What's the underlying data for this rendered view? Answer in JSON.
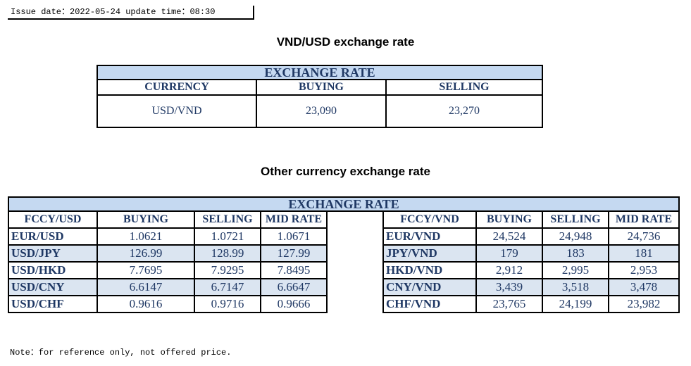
{
  "issue_line": "Issue date：2022-05-24 update time：08:30",
  "title_vnd_usd": "VND/USD exchange rate",
  "table1": {
    "header": "EXCHANGE RATE",
    "columns": [
      "CURRENCY",
      "BUYING",
      "SELLING"
    ],
    "row": [
      "USD/VND",
      "23,090",
      "23,270"
    ]
  },
  "title_other": "Other currency exchange rate",
  "table2": {
    "header": "EXCHANGE RATE",
    "left_columns": [
      "FCCY/USD",
      "BUYING",
      "SELLING",
      "MID RATE"
    ],
    "right_columns": [
      "FCCY/VND",
      "BUYING",
      "SELLING",
      "MID RATE"
    ],
    "rows": [
      {
        "left": [
          "EUR/USD",
          "1.0621",
          "1.0721",
          "1.0671"
        ],
        "right": [
          "EUR/VND",
          "24,524",
          "24,948",
          "24,736"
        ]
      },
      {
        "left": [
          "USD/JPY",
          "126.99",
          "128.99",
          "127.99"
        ],
        "right": [
          "JPY/VND",
          "179",
          "183",
          "181"
        ]
      },
      {
        "left": [
          "USD/HKD",
          "7.7695",
          "7.9295",
          "7.8495"
        ],
        "right": [
          "HKD/VND",
          "2,912",
          "2,995",
          "2,953"
        ]
      },
      {
        "left": [
          "USD/CNY",
          "6.6147",
          "6.7147",
          "6.6647"
        ],
        "right": [
          "CNY/VND",
          "3,439",
          "3,518",
          "3,478"
        ]
      },
      {
        "left": [
          "USD/CHF",
          "0.9616",
          "0.9716",
          "0.9666"
        ],
        "right": [
          "CHF/VND",
          "23,765",
          "24,199",
          "23,982"
        ]
      }
    ]
  },
  "note": "Note：for reference only, not offered price.",
  "colors": {
    "header_fill": "#c5d9f1",
    "alt_row_fill": "#dbe5f1",
    "text": "#1f3864"
  }
}
